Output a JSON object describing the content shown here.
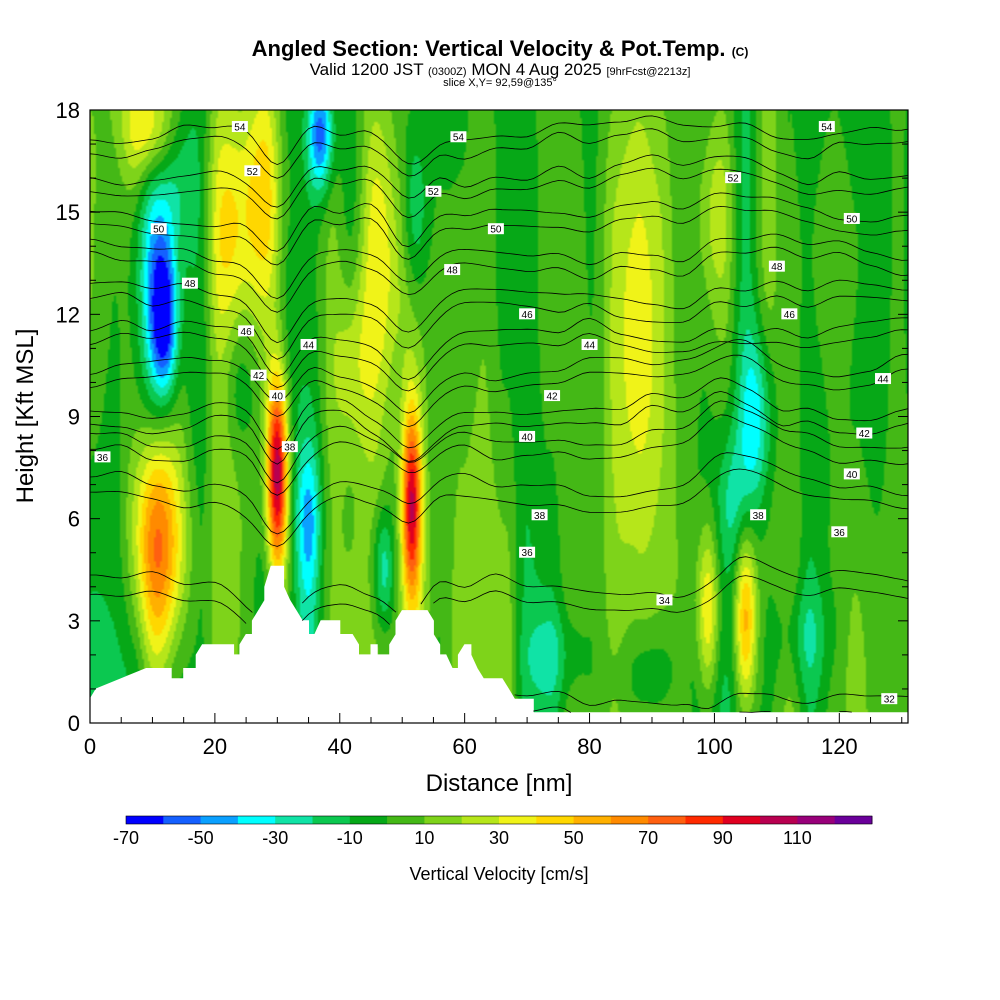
{
  "header": {
    "title": "Angled Section: Vertical Velocity & Pot.Temp.",
    "title_mark": "(C)",
    "valid_prefix": "Valid 1200 JST",
    "valid_utc": "(0300Z)",
    "valid_date": "MON 4 Aug 2025",
    "forecast": "[9hrFcst@2213z]",
    "slice": "slice X,Y= 92,59@135°"
  },
  "chart_data": {
    "type": "heatmap",
    "subtype": "vertical cross-section, filled contours of vertical velocity with potential temperature isolines",
    "xlabel": "Distance [nm]",
    "ylabel": "Height [Kft MSL]",
    "xlim": [
      0,
      131
    ],
    "ylim": [
      0,
      18
    ],
    "x_ticks": [
      0,
      20,
      40,
      60,
      80,
      100,
      120
    ],
    "y_ticks": [
      0,
      3,
      6,
      9,
      12,
      15,
      18
    ],
    "colorbar": {
      "label": "Vertical Velocity [cm/s]",
      "levels": [
        -70,
        -60,
        -50,
        -40,
        -30,
        -20,
        -10,
        0,
        10,
        20,
        30,
        40,
        50,
        60,
        70,
        80,
        90,
        100,
        110,
        120
      ],
      "tick_labels": [
        "-70",
        "-50",
        "-30",
        "-10",
        "10",
        "30",
        "50",
        "70",
        "90",
        "110"
      ],
      "colors": [
        "#0000ff",
        "#1460ff",
        "#0aa0ff",
        "#00ffff",
        "#10e3a6",
        "#0bc850",
        "#06a817",
        "#44b816",
        "#7ed31a",
        "#b6e61a",
        "#f0f318",
        "#ffd700",
        "#ffb000",
        "#ff8a00",
        "#ff6010",
        "#ff2a00",
        "#e00020",
        "#b80050",
        "#98007a",
        "#6a009a"
      ]
    },
    "background_velocity": 0,
    "updrafts": [
      {
        "x": 11,
        "y": 5.2,
        "peak": 75,
        "sx": 3.0,
        "sy": 2.4
      },
      {
        "x": 30,
        "y": 7.3,
        "peak": 110,
        "sx": 1.2,
        "sy": 2.1
      },
      {
        "x": 51.5,
        "y": 6.4,
        "peak": 90,
        "sx": 1.1,
        "sy": 2.0
      },
      {
        "x": 99,
        "y": 3.3,
        "peak": 45,
        "sx": 1.3,
        "sy": 1.8
      },
      {
        "x": 105,
        "y": 3.1,
        "peak": 65,
        "sx": 1.3,
        "sy": 2.0
      },
      {
        "x": 10,
        "y": 17.5,
        "peak": 50,
        "sx": 3.0,
        "sy": 1.2
      },
      {
        "x": 28,
        "y": 15.5,
        "peak": 35,
        "sx": 2.5,
        "sy": 2.5
      },
      {
        "x": 48,
        "y": 13.5,
        "peak": 30,
        "sx": 3.5,
        "sy": 3.0
      },
      {
        "x": 22,
        "y": 14.5,
        "peak": 25,
        "sx": 2.5,
        "sy": 2.5
      },
      {
        "x": 42,
        "y": 10.5,
        "peak": 28,
        "sx": 2.0,
        "sy": 2.0
      },
      {
        "x": 88,
        "y": 11.0,
        "peak": 22,
        "sx": 3.0,
        "sy": 5.0
      },
      {
        "x": 100,
        "y": 15.0,
        "peak": 18,
        "sx": 2.0,
        "sy": 2.0
      },
      {
        "x": 120,
        "y": 14.0,
        "peak": 15,
        "sx": 4.0,
        "sy": 3.0
      }
    ],
    "downdrafts": [
      {
        "x": 12,
        "y": 11.8,
        "peak": -60,
        "sx": 1.5,
        "sy": 1.5
      },
      {
        "x": 10,
        "y": 13.5,
        "peak": -35,
        "sx": 2.5,
        "sy": 3.0
      },
      {
        "x": 14,
        "y": 16.5,
        "peak": -30,
        "sx": 2.0,
        "sy": 2.0
      },
      {
        "x": 37,
        "y": 17.3,
        "peak": -60,
        "sx": 1.5,
        "sy": 1.2
      },
      {
        "x": 35,
        "y": 6.0,
        "peak": -30,
        "sx": 1.5,
        "sy": 1.5
      },
      {
        "x": 47,
        "y": 4.5,
        "peak": -35,
        "sx": 1.2,
        "sy": 1.3
      },
      {
        "x": 52,
        "y": 15.0,
        "peak": -30,
        "sx": 1.5,
        "sy": 2.0
      },
      {
        "x": 107,
        "y": 9.0,
        "peak": -35,
        "sx": 1.8,
        "sy": 1.8
      },
      {
        "x": 103,
        "y": 6.5,
        "peak": -20,
        "sx": 2.0,
        "sy": 1.5
      },
      {
        "x": 24,
        "y": 10.0,
        "peak": -20,
        "sx": 2.0,
        "sy": 1.5
      },
      {
        "x": 74,
        "y": 2.0,
        "peak": -18,
        "sx": 3.0,
        "sy": 1.0
      },
      {
        "x": 90,
        "y": 1.5,
        "peak": -15,
        "sx": 4.0,
        "sy": 1.0
      },
      {
        "x": 114,
        "y": 2.5,
        "peak": -18,
        "sx": 3.0,
        "sy": 1.2
      }
    ],
    "terrain": [
      [
        0,
        0.7
      ],
      [
        1,
        1.0
      ],
      [
        5,
        1.3
      ],
      [
        9,
        1.6
      ],
      [
        13,
        1.6
      ],
      [
        13,
        1.3
      ],
      [
        15,
        1.3
      ],
      [
        15,
        1.6
      ],
      [
        17,
        1.6
      ],
      [
        17,
        2.0
      ],
      [
        18,
        2.3
      ],
      [
        23,
        2.3
      ],
      [
        23,
        2.0
      ],
      [
        24,
        2.0
      ],
      [
        24,
        2.3
      ],
      [
        25,
        2.6
      ],
      [
        26,
        2.6
      ],
      [
        26,
        3.0
      ],
      [
        27,
        3.3
      ],
      [
        28,
        3.6
      ],
      [
        28,
        4.0
      ],
      [
        29,
        4.6
      ],
      [
        31,
        4.6
      ],
      [
        31,
        4.0
      ],
      [
        32,
        3.6
      ],
      [
        33,
        3.3
      ],
      [
        34,
        3.0
      ],
      [
        35,
        3.0
      ],
      [
        35,
        2.6
      ],
      [
        36,
        2.6
      ],
      [
        37,
        3.0
      ],
      [
        40,
        3.0
      ],
      [
        40,
        2.6
      ],
      [
        42,
        2.6
      ],
      [
        43,
        2.3
      ],
      [
        43,
        2.0
      ],
      [
        45,
        2.0
      ],
      [
        45,
        2.3
      ],
      [
        46,
        2.3
      ],
      [
        46,
        2.0
      ],
      [
        48,
        2.0
      ],
      [
        48,
        2.3
      ],
      [
        49,
        2.6
      ],
      [
        49,
        3.0
      ],
      [
        50,
        3.3
      ],
      [
        54,
        3.3
      ],
      [
        55,
        3.0
      ],
      [
        55,
        2.6
      ],
      [
        56,
        2.3
      ],
      [
        56,
        2.0
      ],
      [
        57,
        2.0
      ],
      [
        58,
        1.6
      ],
      [
        59,
        1.6
      ],
      [
        59,
        2.0
      ],
      [
        60,
        2.3
      ],
      [
        61,
        2.3
      ],
      [
        61,
        2.0
      ],
      [
        62,
        1.6
      ],
      [
        63,
        1.3
      ],
      [
        66,
        1.3
      ],
      [
        67,
        1.0
      ],
      [
        68,
        0.7
      ],
      [
        71,
        0.7
      ],
      [
        71,
        0.3
      ],
      [
        131,
        0.3
      ]
    ],
    "isentropes": [
      {
        "label": "32",
        "base": 0.0,
        "spacing": 1.0
      },
      {
        "label": "34",
        "base": 3.5,
        "spacing": 1.0
      },
      {
        "label": "36",
        "base": 6.5,
        "spacing": 1.0
      },
      {
        "label": "38",
        "base": 8.0,
        "spacing": 0.8
      },
      {
        "label": "40",
        "base": 8.8,
        "spacing": 0.8
      },
      {
        "label": "42",
        "base": 10.0,
        "spacing": 0.8
      },
      {
        "label": "44",
        "base": 11.1,
        "spacing": 0.8
      },
      {
        "label": "46",
        "base": 12.2,
        "spacing": 0.8
      },
      {
        "label": "48",
        "base": 13.4,
        "spacing": 0.8
      },
      {
        "label": "50",
        "base": 14.6,
        "spacing": 0.8
      },
      {
        "label": "52",
        "base": 15.8,
        "spacing": 0.8
      },
      {
        "label": "54",
        "base": 17.0,
        "spacing": 0.8
      }
    ],
    "isentrope_labels": [
      {
        "t": "54",
        "x": 24,
        "y": 17.5
      },
      {
        "t": "54",
        "x": 59,
        "y": 17.2
      },
      {
        "t": "54",
        "x": 118,
        "y": 17.5
      },
      {
        "t": "52",
        "x": 26,
        "y": 16.2
      },
      {
        "t": "52",
        "x": 55,
        "y": 15.6
      },
      {
        "t": "52",
        "x": 103,
        "y": 16.0
      },
      {
        "t": "50",
        "x": 11,
        "y": 14.5
      },
      {
        "t": "50",
        "x": 65,
        "y": 14.5
      },
      {
        "t": "50",
        "x": 122,
        "y": 14.8
      },
      {
        "t": "48",
        "x": 16,
        "y": 12.9
      },
      {
        "t": "48",
        "x": 58,
        "y": 13.3
      },
      {
        "t": "48",
        "x": 110,
        "y": 13.4
      },
      {
        "t": "46",
        "x": 25,
        "y": 11.5
      },
      {
        "t": "46",
        "x": 70,
        "y": 12.0
      },
      {
        "t": "46",
        "x": 112,
        "y": 12.0
      },
      {
        "t": "44",
        "x": 35,
        "y": 11.1
      },
      {
        "t": "44",
        "x": 80,
        "y": 11.1
      },
      {
        "t": "44",
        "x": 127,
        "y": 10.1
      },
      {
        "t": "42",
        "x": 27,
        "y": 10.2
      },
      {
        "t": "42",
        "x": 74,
        "y": 9.6
      },
      {
        "t": "42",
        "x": 124,
        "y": 8.5
      },
      {
        "t": "40",
        "x": 30,
        "y": 9.6
      },
      {
        "t": "40",
        "x": 70,
        "y": 8.4
      },
      {
        "t": "40",
        "x": 122,
        "y": 7.3
      },
      {
        "t": "38",
        "x": 32,
        "y": 8.1
      },
      {
        "t": "38",
        "x": 72,
        "y": 6.1
      },
      {
        "t": "38",
        "x": 107,
        "y": 6.1
      },
      {
        "t": "36",
        "x": 2,
        "y": 7.8
      },
      {
        "t": "36",
        "x": 70,
        "y": 5.0
      },
      {
        "t": "36",
        "x": 120,
        "y": 5.6
      },
      {
        "t": "34",
        "x": 92,
        "y": 3.6
      },
      {
        "t": "32",
        "x": 128,
        "y": 0.7
      }
    ]
  }
}
